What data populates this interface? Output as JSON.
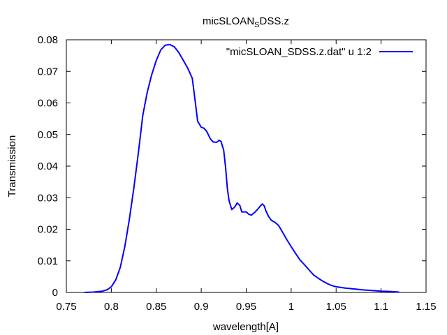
{
  "chart_data": {
    "type": "line",
    "title": {
      "main": "micSLOAN",
      "subscript": "S",
      "suffix": "DSS.z"
    },
    "xlabel": "wavelength[A]",
    "ylabel": "Transmission",
    "xlim": [
      0.75,
      1.15
    ],
    "ylim": [
      0,
      0.08
    ],
    "x_ticks": [
      "0.75",
      "0.8",
      "0.85",
      "0.9",
      "0.95",
      "1",
      "1.05",
      "1.1",
      "1.15"
    ],
    "y_ticks": [
      "0",
      "0.01",
      "0.02",
      "0.03",
      "0.04",
      "0.05",
      "0.06",
      "0.07",
      "0.08"
    ],
    "grid": false,
    "legend_position": "top-right",
    "series": [
      {
        "name": "\"micSLOAN_SDSS.z.dat\" u 1:2",
        "color": "#0000ff",
        "x": [
          0.77,
          0.78,
          0.79,
          0.795,
          0.8,
          0.805,
          0.81,
          0.815,
          0.82,
          0.825,
          0.83,
          0.835,
          0.84,
          0.845,
          0.85,
          0.855,
          0.86,
          0.865,
          0.87,
          0.875,
          0.88,
          0.885,
          0.89,
          0.893,
          0.896,
          0.9,
          0.903,
          0.906,
          0.91,
          0.913,
          0.917,
          0.92,
          0.922,
          0.925,
          0.927,
          0.929,
          0.931,
          0.934,
          0.937,
          0.94,
          0.943,
          0.945,
          0.947,
          0.95,
          0.953,
          0.956,
          0.96,
          0.963,
          0.966,
          0.968,
          0.97,
          0.972,
          0.975,
          0.978,
          0.982,
          0.986,
          0.99,
          0.995,
          1.0,
          1.005,
          1.01,
          1.015,
          1.02,
          1.025,
          1.03,
          1.035,
          1.04,
          1.045,
          1.05,
          1.06,
          1.07,
          1.08,
          1.09,
          1.1,
          1.11,
          1.12
        ],
        "y": [
          0.0,
          0.0001,
          0.0004,
          0.0008,
          0.0018,
          0.004,
          0.008,
          0.0145,
          0.023,
          0.033,
          0.044,
          0.056,
          0.0635,
          0.069,
          0.0735,
          0.0768,
          0.0783,
          0.0785,
          0.0778,
          0.076,
          0.0735,
          0.071,
          0.0678,
          0.0612,
          0.0542,
          0.0523,
          0.052,
          0.051,
          0.0487,
          0.0477,
          0.0475,
          0.0482,
          0.0478,
          0.045,
          0.0398,
          0.033,
          0.029,
          0.0262,
          0.027,
          0.0283,
          0.0275,
          0.0255,
          0.0255,
          0.0255,
          0.0247,
          0.0245,
          0.0255,
          0.0264,
          0.0275,
          0.028,
          0.0274,
          0.0258,
          0.024,
          0.0228,
          0.0222,
          0.0212,
          0.0193,
          0.0168,
          0.0145,
          0.0123,
          0.0102,
          0.0087,
          0.0071,
          0.0055,
          0.0045,
          0.0036,
          0.0028,
          0.0022,
          0.0018,
          0.0014,
          0.0011,
          0.0008,
          0.0006,
          0.0004,
          0.0003,
          0.0001
        ]
      }
    ]
  }
}
